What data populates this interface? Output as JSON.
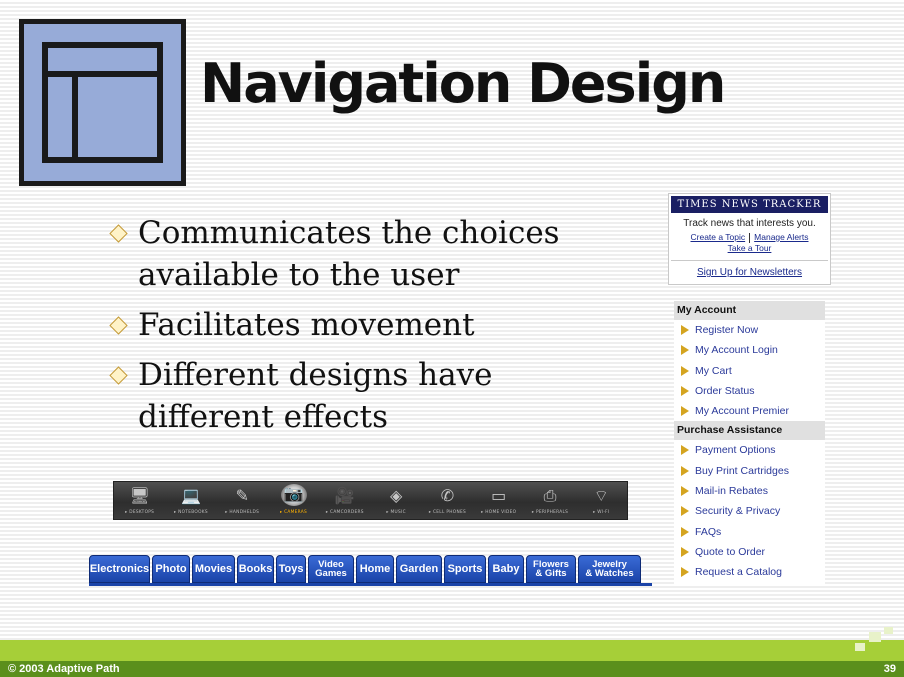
{
  "slide": {
    "title": "Navigation Design",
    "bullets": [
      "Communicates the choices available to the user",
      "Facilitates movement",
      "Different designs have different effects"
    ],
    "footer": {
      "copyright": "© 2003 Adaptive Path",
      "page_number": "39"
    }
  },
  "times_tracker": {
    "header": "TIMES NEWS TRACKER",
    "tagline": "Track news that interests you.",
    "create_topic": "Create a Topic",
    "manage_alerts": "Manage Alerts",
    "take_tour": "Take a Tour",
    "newsletters": "Sign Up for Newsletters"
  },
  "account_panel": {
    "sections": [
      {
        "heading": "My Account",
        "items": [
          "Register Now",
          "My Account Login",
          "My Cart",
          "Order Status",
          "My Account Premier"
        ]
      },
      {
        "heading": "Purchase Assistance",
        "items": [
          "Payment Options",
          "Buy Print Cartridges",
          "Mail-in Rebates",
          "Security & Privacy",
          "FAQs",
          "Quote to Order",
          "Request a Catalog"
        ]
      }
    ]
  },
  "icon_toolbar": {
    "items": [
      {
        "label": "DESKTOPS",
        "icon": "desktop-icon"
      },
      {
        "label": "NOTEBOOKS",
        "icon": "notebook-icon"
      },
      {
        "label": "HANDHELDS",
        "icon": "handheld-icon"
      },
      {
        "label": "CAMERAS",
        "icon": "camera-icon",
        "selected": true
      },
      {
        "label": "CAMCORDERS",
        "icon": "camcorder-icon"
      },
      {
        "label": "MUSIC",
        "icon": "music-player-icon"
      },
      {
        "label": "CELL PHONES",
        "icon": "cell-phone-icon"
      },
      {
        "label": "HOME VIDEO",
        "icon": "tv-icon"
      },
      {
        "label": "PERIPHERALS",
        "icon": "printer-icon"
      },
      {
        "label": "WI-FI",
        "icon": "wifi-router-icon"
      }
    ]
  },
  "store_tabs": [
    {
      "label": "Electronics"
    },
    {
      "label": "Photo"
    },
    {
      "label": "Movies"
    },
    {
      "label": "Books"
    },
    {
      "label": "Toys"
    },
    {
      "label": "Video Games",
      "lines": [
        "Video",
        "Games"
      ]
    },
    {
      "label": "Home"
    },
    {
      "label": "Garden"
    },
    {
      "label": "Sports"
    },
    {
      "label": "Baby"
    },
    {
      "label": "Flowers & Gifts",
      "lines": [
        "Flowers",
        "& Gifts"
      ]
    },
    {
      "label": "Jewelry & Watches",
      "lines": [
        "Jewelry",
        "& Watches"
      ]
    }
  ],
  "colors": {
    "logo_face": "#97abd8",
    "times_header": "#1a1f63",
    "link_blue": "#2b3a9a",
    "arrow_gold": "#d4a420",
    "tab_blue": "#1a43a8",
    "footer_light": "#a6cf38",
    "footer_dark": "#5b8f1c",
    "toolbar_selected": "#ffb300"
  }
}
